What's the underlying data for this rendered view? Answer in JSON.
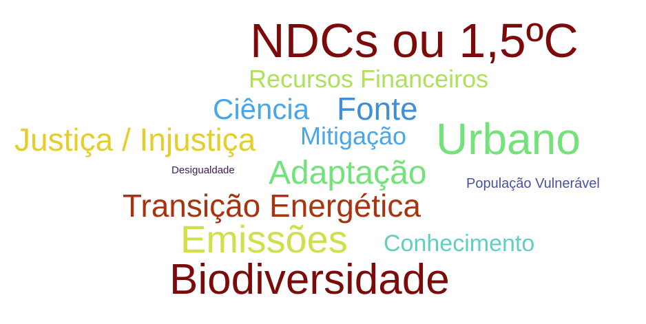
{
  "words": [
    {
      "id": "ndcs",
      "text": "NDCs ou 1,5ºC",
      "color": "#7d0a0a"
    },
    {
      "id": "recursos",
      "text": "Recursos Financeiros",
      "color": "#aee05a"
    },
    {
      "id": "ciencia",
      "text": "Ciência",
      "color": "#4aa6e8"
    },
    {
      "id": "fonte",
      "text": "Fonte",
      "color": "#3f8fd8"
    },
    {
      "id": "justica",
      "text": "Justiça / Injustiça",
      "color": "#e3cf2c"
    },
    {
      "id": "mitigacao",
      "text": "Mitigação",
      "color": "#4aa6e8"
    },
    {
      "id": "urbano",
      "text": "Urbano",
      "color": "#74e27a"
    },
    {
      "id": "desigualdade",
      "text": "Desigualdade",
      "color": "#3b1a5a"
    },
    {
      "id": "adaptacao",
      "text": "Adaptação",
      "color": "#74e27a"
    },
    {
      "id": "populacao",
      "text": "População Vulnerável",
      "color": "#4a4fa6"
    },
    {
      "id": "transicao",
      "text": "Transição Energética",
      "color": "#a8330f"
    },
    {
      "id": "emissoes",
      "text": "Emissões",
      "color": "#cfe04a"
    },
    {
      "id": "conhecimento",
      "text": "Conhecimento",
      "color": "#5fcfc0"
    },
    {
      "id": "biodiversidade",
      "text": "Biodiversidade",
      "color": "#7d0a0a"
    }
  ]
}
